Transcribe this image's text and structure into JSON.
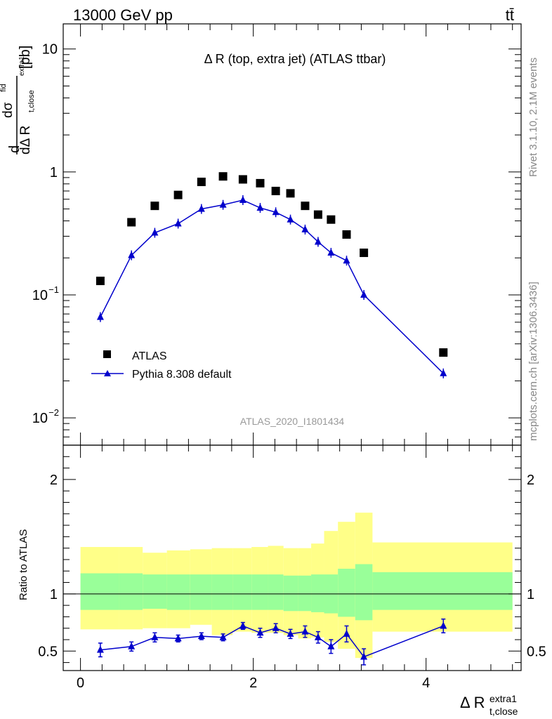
{
  "header": {
    "energy_label": "13000 GeV pp",
    "process_label": "tt̄"
  },
  "side_labels": {
    "rivet": "Rivet 3.1.10,  2.1M events",
    "mcplots": "mcplots.cern.ch [arXiv:1306.3436]"
  },
  "chart_data": {
    "type": "scatter",
    "title": "Δ R (top, extra jet) (ATLAS ttbar)",
    "analysis_tag": "ATLAS_2020_I1801434",
    "xlabel": "Δ R",
    "xlabel_sub": "t,close",
    "xlabel_sup": "extra1",
    "ylabel": "dσ/dΔ R [pb]",
    "ylabel_parts": {
      "d": "d",
      "sigma": "dσ",
      "sigma_sup": "fid",
      "denom": "dΔ R",
      "denom_sub": "t,close",
      "denom_sup": "extra1",
      "unit": "[pb]"
    },
    "ratio_ylabel": "Ratio to ATLAS",
    "xlim": [
      -0.2,
      5.1
    ],
    "ylim": [
      0.006,
      16
    ],
    "ylog": true,
    "ratio_ylim": [
      0.33,
      2.3
    ],
    "xticks": [
      0,
      2,
      4
    ],
    "xtick_labels": [
      "0",
      "2",
      "4"
    ],
    "yticks": [
      0.01,
      0.1,
      1,
      10
    ],
    "ytick_labels": [
      {
        "base": "10",
        "exp": "−2"
      },
      {
        "base": "10",
        "exp": "−1"
      },
      {
        "base": "1",
        "exp": ""
      },
      {
        "base": "10",
        "exp": ""
      }
    ],
    "ratio_yticks": [
      0.5,
      1,
      2
    ],
    "ratio_ytick_labels": [
      "0.5",
      "1",
      "2"
    ],
    "legend_position": "lower-left",
    "series": [
      {
        "name": "ATLAS",
        "color": "#000000",
        "marker": "square",
        "x": [
          0.23,
          0.59,
          0.86,
          1.13,
          1.4,
          1.65,
          1.88,
          2.08,
          2.26,
          2.43,
          2.6,
          2.75,
          2.9,
          3.08,
          3.28,
          4.2
        ],
        "y": [
          0.13,
          0.39,
          0.53,
          0.65,
          0.83,
          0.92,
          0.87,
          0.81,
          0.7,
          0.67,
          0.53,
          0.45,
          0.41,
          0.31,
          0.22,
          0.034
        ]
      },
      {
        "name": "Pythia 8.308 default",
        "color": "#0000cc",
        "marker": "triangle",
        "x": [
          0.23,
          0.59,
          0.86,
          1.13,
          1.4,
          1.65,
          1.88,
          2.08,
          2.26,
          2.43,
          2.6,
          2.75,
          2.9,
          3.08,
          3.28,
          4.2
        ],
        "y": [
          0.066,
          0.21,
          0.32,
          0.38,
          0.5,
          0.54,
          0.59,
          0.51,
          0.47,
          0.41,
          0.34,
          0.27,
          0.22,
          0.19,
          0.1,
          0.023
        ],
        "ratio": [
          0.51,
          0.54,
          0.62,
          0.61,
          0.63,
          0.62,
          0.72,
          0.66,
          0.7,
          0.65,
          0.67,
          0.62,
          0.54,
          0.65,
          0.45,
          0.72
        ],
        "ratio_err": [
          0.06,
          0.04,
          0.04,
          0.03,
          0.03,
          0.03,
          0.03,
          0.04,
          0.04,
          0.04,
          0.05,
          0.05,
          0.06,
          0.07,
          0.07,
          0.06
        ]
      }
    ],
    "bands": {
      "bin_edges": [
        0.0,
        0.45,
        0.72,
        1.0,
        1.27,
        1.52,
        1.76,
        1.98,
        2.17,
        2.35,
        2.52,
        2.67,
        2.82,
        2.98,
        3.18,
        3.38,
        5.0
      ],
      "inner_color": "#99ff99",
      "outer_color": "#ffff88",
      "inner_hi": [
        1.18,
        1.18,
        1.17,
        1.17,
        1.17,
        1.17,
        1.17,
        1.17,
        1.17,
        1.16,
        1.16,
        1.17,
        1.17,
        1.22,
        1.26,
        1.19
      ],
      "inner_lo": [
        0.86,
        0.86,
        0.87,
        0.86,
        0.86,
        0.86,
        0.86,
        0.86,
        0.86,
        0.85,
        0.85,
        0.84,
        0.83,
        0.8,
        0.77,
        0.86
      ],
      "outer_hi": [
        1.41,
        1.41,
        1.36,
        1.38,
        1.39,
        1.4,
        1.4,
        1.41,
        1.42,
        1.4,
        1.4,
        1.44,
        1.55,
        1.63,
        1.71,
        1.45
      ],
      "outer_lo": [
        0.69,
        0.69,
        0.7,
        0.7,
        0.73,
        0.64,
        0.67,
        0.66,
        0.66,
        0.64,
        0.61,
        0.62,
        0.58,
        0.52,
        0.44,
        0.67
      ]
    }
  }
}
